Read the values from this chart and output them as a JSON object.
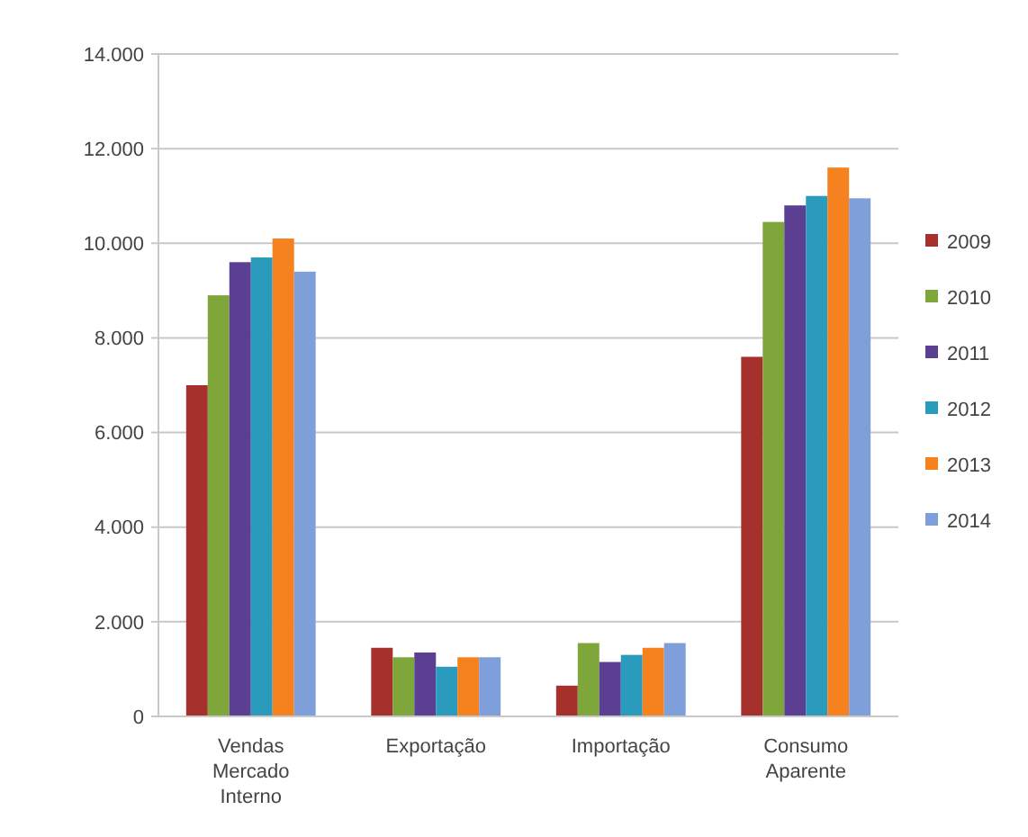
{
  "chart_data": {
    "type": "bar",
    "categories": [
      "Vendas Mercado Interno",
      "Exportação",
      "Importação",
      "Consumo Aparente"
    ],
    "series": [
      {
        "name": "2009",
        "color": "#a5302c",
        "values": [
          7000,
          1450,
          650,
          7600
        ]
      },
      {
        "name": "2010",
        "color": "#7fa63a",
        "values": [
          8900,
          1250,
          1550,
          10450
        ]
      },
      {
        "name": "2011",
        "color": "#5b3f92",
        "values": [
          9600,
          1350,
          1150,
          10800
        ]
      },
      {
        "name": "2012",
        "color": "#2a9bbd",
        "values": [
          9700,
          1050,
          1300,
          11000
        ]
      },
      {
        "name": "2013",
        "color": "#f5821f",
        "values": [
          10100,
          1250,
          1450,
          11600
        ]
      },
      {
        "name": "2014",
        "color": "#7f9fdb",
        "values": [
          9400,
          1250,
          1550,
          10950
        ]
      }
    ],
    "ylim": [
      0,
      14000
    ],
    "yticks": [
      {
        "value": 0,
        "label": "0"
      },
      {
        "value": 2000,
        "label": "2.000"
      },
      {
        "value": 4000,
        "label": "4.000"
      },
      {
        "value": 6000,
        "label": "6.000"
      },
      {
        "value": 8000,
        "label": "8.000"
      },
      {
        "value": 10000,
        "label": "10.000"
      },
      {
        "value": 12000,
        "label": "12.000"
      },
      {
        "value": 14000,
        "label": "14.000"
      }
    ],
    "grid": "y",
    "legend": "right"
  }
}
